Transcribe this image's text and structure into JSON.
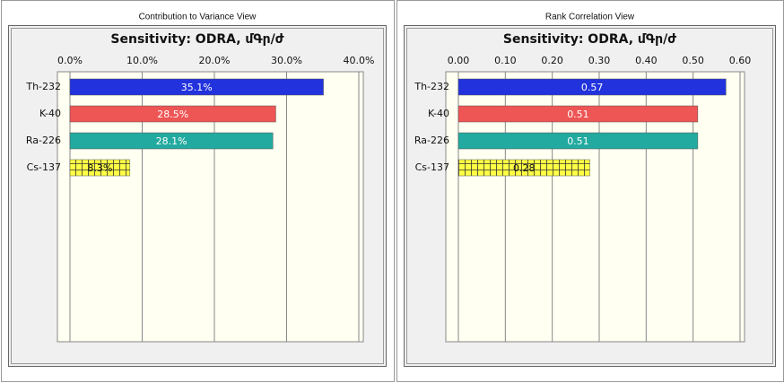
{
  "chart_data": [
    {
      "type": "bar",
      "panel_title": "Contribution to Variance View",
      "title": "Sensitivity: ODRA, մԳր/ժ",
      "categories": [
        "Th-232",
        "K-40",
        "Ra-226",
        "Cs-137"
      ],
      "values": [
        35.1,
        28.5,
        28.1,
        8.3
      ],
      "value_labels": [
        "35.1%",
        "28.5%",
        "28.1%",
        "8.3%"
      ],
      "colors": [
        "#2233dd",
        "#ee5555",
        "#22aaa0",
        "#ffff44"
      ],
      "hatched": [
        false,
        false,
        false,
        true
      ],
      "xlim": [
        0,
        40
      ],
      "xticks": [
        {
          "value": 0,
          "label": "0.0%"
        },
        {
          "value": 10,
          "label": "10.0%"
        },
        {
          "value": 20,
          "label": "20.0%"
        },
        {
          "value": 30,
          "label": "30.0%"
        },
        {
          "value": 40,
          "label": "40.0%"
        }
      ],
      "grid": true
    },
    {
      "type": "bar",
      "panel_title": "Rank Correlation View",
      "title": "Sensitivity: ODRA, մԳր/ժ",
      "categories": [
        "Th-232",
        "K-40",
        "Ra-226",
        "Cs-137"
      ],
      "values": [
        0.57,
        0.51,
        0.51,
        0.28
      ],
      "colors": [
        "#2233dd",
        "#ee5555",
        "#22aaa0",
        "#ffff44"
      ],
      "hatched": [
        false,
        false,
        false,
        true
      ],
      "xlim": [
        0,
        0.6
      ],
      "xticks": [
        {
          "value": 0,
          "label": "0.00"
        },
        {
          "value": 0.1,
          "label": "0.10"
        },
        {
          "value": 0.2,
          "label": "0.20"
        },
        {
          "value": 0.3,
          "label": "0.30"
        },
        {
          "value": 0.4,
          "label": "0.40"
        },
        {
          "value": 0.5,
          "label": "0.50"
        },
        {
          "value": 0.6,
          "label": "0.60"
        }
      ],
      "grid": true
    }
  ]
}
